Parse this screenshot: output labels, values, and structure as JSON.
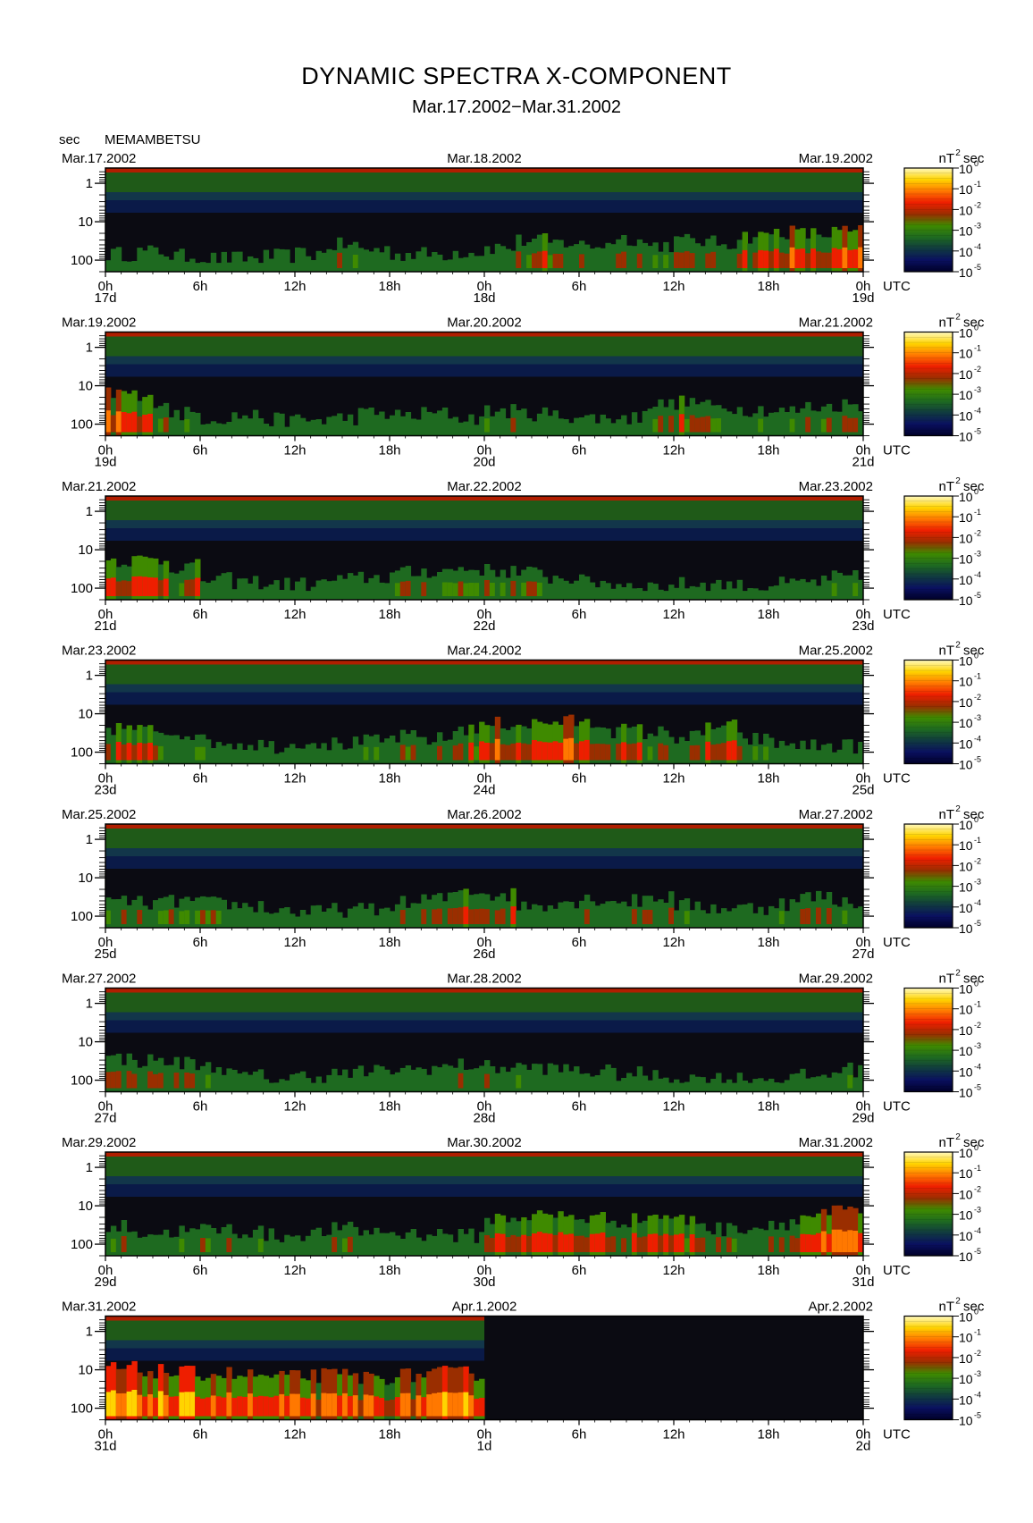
{
  "header": {
    "title": "DYNAMIC SPECTRA X-COMPONENT",
    "subtitle": "Mar.17.2002−Mar.31.2002",
    "period_unit": "sec",
    "station": "MEMAMBETSU"
  },
  "colorbar": {
    "unit_label": "nT",
    "unit_exponent": "2",
    "unit_suffix": "sec",
    "ticks": [
      {
        "base": "10",
        "exp": "0"
      },
      {
        "base": "10",
        "exp": "-1"
      },
      {
        "base": "10",
        "exp": "-2"
      },
      {
        "base": "10",
        "exp": "-3"
      },
      {
        "base": "10",
        "exp": "-4"
      },
      {
        "base": "10",
        "exp": "-5"
      }
    ],
    "colors": [
      "#fff9c0",
      "#ffd400",
      "#ff7800",
      "#ee1e00",
      "#9a2e00",
      "#3f8a00",
      "#1e6a20",
      "#103a40",
      "#0a1060",
      "#000028"
    ]
  },
  "chart_data": {
    "type": "heatmap",
    "title": "DYNAMIC SPECTRA X-COMPONENT",
    "subtitle": "Mar.17.2002−Mar.31.2002",
    "ylabel": "sec",
    "ylim": [
      200,
      0.4
    ],
    "y_scale": "log",
    "y_ticks": [
      "1",
      "10",
      "100"
    ],
    "x_ticks": [
      "0h",
      "6h",
      "12h",
      "18h",
      "0h",
      "6h",
      "12h",
      "18h",
      "0h"
    ],
    "x_suffix": "UTC",
    "color_scale": "log",
    "color_range": [
      1e-05,
      1
    ],
    "panels": [
      {
        "date_left": "Mar.17.2002",
        "date_mid": "Mar.18.2002",
        "date_right": "Mar.19.2002",
        "day_labels": [
          "17d",
          "18d",
          "19d"
        ],
        "has_data_until_hours": 48,
        "activity": [
          0.2,
          0.25,
          0.15,
          0.1,
          0.1,
          0.15,
          0.2,
          0.4,
          0.3,
          0.2,
          0.2,
          0.25,
          0.35,
          0.5,
          0.45,
          0.4,
          0.55,
          0.4,
          0.5,
          0.45,
          0.6,
          0.7,
          0.65,
          0.7
        ]
      },
      {
        "date_left": "Mar.19.2002",
        "date_mid": "Mar.20.2002",
        "date_right": "Mar.21.2002",
        "day_labels": [
          "19d",
          "20d",
          "21d"
        ],
        "has_data_until_hours": 48,
        "activity": [
          0.75,
          0.6,
          0.3,
          0.2,
          0.25,
          0.15,
          0.15,
          0.2,
          0.3,
          0.25,
          0.3,
          0.2,
          0.35,
          0.3,
          0.25,
          0.2,
          0.2,
          0.5,
          0.55,
          0.45,
          0.4,
          0.35,
          0.45,
          0.5
        ]
      },
      {
        "date_left": "Mar.21.2002",
        "date_mid": "Mar.22.2002",
        "date_right": "Mar.23.2002",
        "day_labels": [
          "21d",
          "22d",
          "23d"
        ],
        "has_data_until_hours": 48,
        "activity": [
          0.7,
          0.7,
          0.55,
          0.25,
          0.2,
          0.15,
          0.15,
          0.25,
          0.3,
          0.4,
          0.45,
          0.5,
          0.45,
          0.4,
          0.3,
          0.2,
          0.15,
          0.1,
          0.15,
          0.15,
          0.1,
          0.15,
          0.2,
          0.3
        ]
      },
      {
        "date_left": "Mar.23.2002",
        "date_mid": "Mar.24.2002",
        "date_right": "Mar.25.2002",
        "day_labels": [
          "23d",
          "24d",
          "25d"
        ],
        "has_data_until_hours": 48,
        "activity": [
          0.6,
          0.55,
          0.5,
          0.3,
          0.25,
          0.2,
          0.3,
          0.25,
          0.3,
          0.4,
          0.35,
          0.6,
          0.7,
          0.7,
          0.75,
          0.7,
          0.55,
          0.5,
          0.4,
          0.65,
          0.35,
          0.25,
          0.2,
          0.2
        ]
      },
      {
        "date_left": "Mar.25.2002",
        "date_mid": "Mar.26.2002",
        "date_right": "Mar.27.2002",
        "day_labels": [
          "25d",
          "26d",
          "27d"
        ],
        "has_data_until_hours": 48,
        "activity": [
          0.4,
          0.35,
          0.4,
          0.35,
          0.3,
          0.2,
          0.15,
          0.2,
          0.2,
          0.35,
          0.45,
          0.65,
          0.55,
          0.3,
          0.4,
          0.45,
          0.4,
          0.5,
          0.3,
          0.25,
          0.25,
          0.35,
          0.5,
          0.4
        ]
      },
      {
        "date_left": "Mar.27.2002",
        "date_mid": "Mar.28.2002",
        "date_right": "Mar.29.2002",
        "day_labels": [
          "27d",
          "28d",
          "29d"
        ],
        "has_data_until_hours": 48,
        "activity": [
          0.55,
          0.5,
          0.45,
          0.35,
          0.15,
          0.1,
          0.15,
          0.2,
          0.25,
          0.3,
          0.35,
          0.4,
          0.35,
          0.35,
          0.3,
          0.25,
          0.2,
          0.15,
          0.1,
          0.1,
          0.1,
          0.1,
          0.15,
          0.3
        ]
      },
      {
        "date_left": "Mar.29.2002",
        "date_mid": "Mar.30.2002",
        "date_right": "Mar.31.2002",
        "day_labels": [
          "29d",
          "30d",
          "31d"
        ],
        "has_data_until_hours": 48,
        "activity": [
          0.45,
          0.3,
          0.35,
          0.4,
          0.35,
          0.25,
          0.3,
          0.4,
          0.35,
          0.3,
          0.3,
          0.25,
          0.65,
          0.7,
          0.7,
          0.65,
          0.6,
          0.7,
          0.6,
          0.4,
          0.45,
          0.55,
          0.7,
          0.8
        ]
      },
      {
        "date_left": "Mar.31.2002",
        "date_mid": "Apr.1.2002",
        "date_right": "Apr.2.2002",
        "day_labels": [
          "31d",
          "1d",
          "2d"
        ],
        "has_data_until_hours": 24,
        "activity": [
          0.95,
          0.9,
          0.85,
          0.85,
          0.8,
          0.75,
          0.8,
          0.8,
          0.75,
          0.8,
          0.85,
          0.85,
          0,
          0,
          0,
          0,
          0,
          0,
          0,
          0,
          0,
          0,
          0,
          0
        ]
      }
    ]
  }
}
